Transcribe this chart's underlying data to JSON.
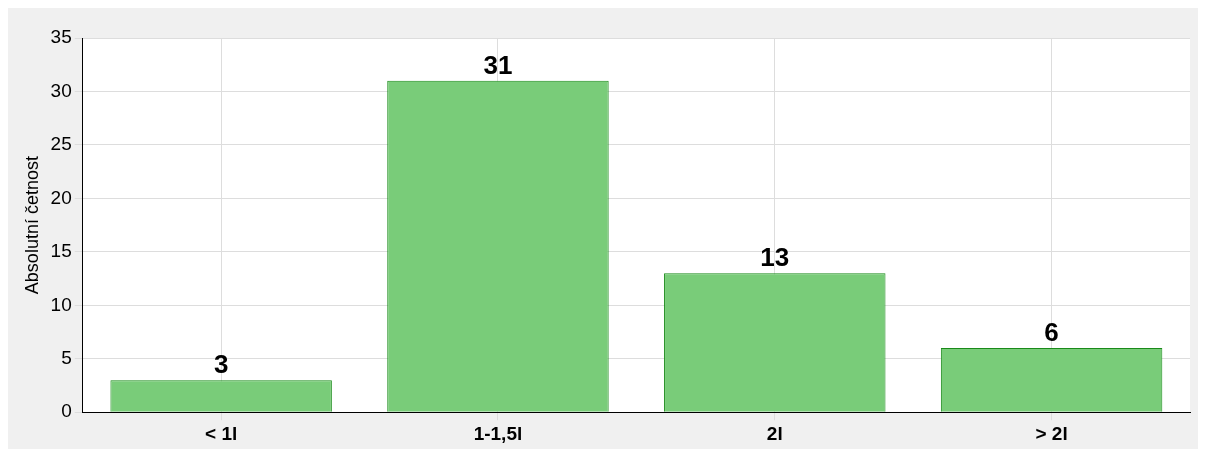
{
  "chart_data": {
    "type": "bar",
    "ylabel": "Absolutní četnost",
    "categories": [
      "< 1l",
      "1-1,5l",
      "2l",
      "> 2l"
    ],
    "values": [
      3,
      31,
      13,
      6
    ],
    "color": "#79cc79",
    "ylim": [
      0,
      35
    ],
    "yticks": [
      0,
      5,
      10,
      15,
      20,
      25,
      30,
      35
    ],
    "grid": true,
    "data_labels": true
  }
}
